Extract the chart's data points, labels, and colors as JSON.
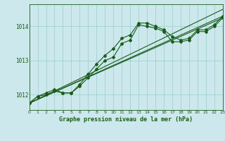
{
  "title": "Graphe pression niveau de la mer (hPa)",
  "bg_color": "#cce8ec",
  "grid_color": "#99cccc",
  "line_color": "#1a5c1a",
  "xlim": [
    0,
    23
  ],
  "ylim": [
    1011.55,
    1014.65
  ],
  "yticks": [
    1012,
    1013,
    1014
  ],
  "xticks": [
    0,
    1,
    2,
    3,
    4,
    5,
    6,
    7,
    8,
    9,
    10,
    11,
    12,
    13,
    14,
    15,
    16,
    17,
    18,
    19,
    20,
    21,
    22,
    23
  ],
  "series1_x": [
    0,
    1,
    2,
    3,
    4,
    5,
    6,
    7,
    8,
    9,
    10,
    11,
    12,
    13,
    14,
    15,
    16,
    17,
    18,
    19,
    20,
    21,
    22,
    23
  ],
  "series1_y": [
    1011.75,
    1011.95,
    1012.0,
    1012.1,
    1012.05,
    1012.05,
    1012.25,
    1012.5,
    1012.75,
    1013.0,
    1013.1,
    1013.5,
    1013.6,
    1014.05,
    1014.0,
    1013.95,
    1013.85,
    1013.55,
    1013.55,
    1013.6,
    1013.85,
    1013.85,
    1014.0,
    1014.25
  ],
  "series2_x": [
    0,
    1,
    2,
    3,
    4,
    5,
    6,
    7,
    8,
    9,
    10,
    11,
    12,
    13,
    14,
    15,
    16,
    17,
    18,
    19,
    20,
    21,
    22,
    23
  ],
  "series2_y": [
    1011.75,
    1011.95,
    1012.05,
    1012.15,
    1012.05,
    1012.05,
    1012.3,
    1012.6,
    1012.9,
    1013.15,
    1013.35,
    1013.65,
    1013.75,
    1014.1,
    1014.1,
    1014.0,
    1013.9,
    1013.7,
    1013.6,
    1013.65,
    1013.9,
    1013.9,
    1014.05,
    1014.3
  ],
  "line3_x": [
    0,
    23
  ],
  "line3_y": [
    1011.75,
    1014.25
  ],
  "line4_x": [
    0,
    23
  ],
  "line4_y": [
    1011.75,
    1014.3
  ],
  "line5_x": [
    0,
    23
  ],
  "line5_y": [
    1011.75,
    1014.5
  ]
}
